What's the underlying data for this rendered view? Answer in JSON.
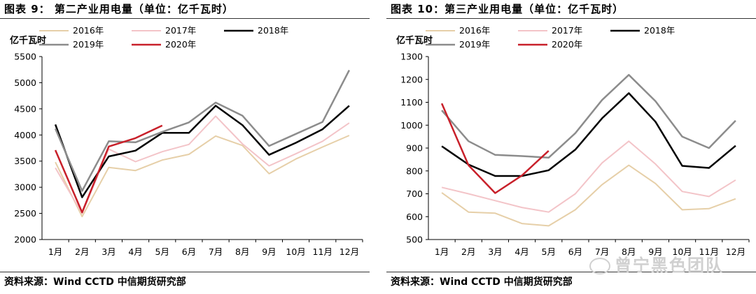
{
  "charts": [
    {
      "figure_title": "图表 9：  第二产业用电量（单位：亿千瓦时）",
      "source": "资料来源：Wind CCTD 中信期货研究部",
      "chart_data": {
        "type": "line",
        "ylabel": "亿千瓦时",
        "ylim": [
          2000,
          5500
        ],
        "yticks": [
          2000,
          2500,
          3000,
          3500,
          4000,
          4500,
          5000,
          5500
        ],
        "categories": [
          "1月",
          "2月",
          "3月",
          "4月",
          "5月",
          "6月",
          "7月",
          "8月",
          "9月",
          "10月",
          "11月",
          "12月"
        ],
        "legend": "top",
        "series": [
          {
            "name": "2016年",
            "color": "#e6cfa8",
            "width": 2,
            "values": [
              3480,
              2440,
              3380,
              3320,
              3520,
              3630,
              3980,
              3800,
              3260,
              3540,
              3770,
              3990
            ]
          },
          {
            "name": "2017年",
            "color": "#f3c4c8",
            "width": 2,
            "values": [
              3370,
              2500,
              3730,
              3490,
              3680,
              3820,
              4360,
              3830,
              3410,
              3640,
              3880,
              4230
            ]
          },
          {
            "name": "2018年",
            "color": "#000000",
            "width": 2.5,
            "values": [
              4200,
              2810,
              3590,
              3700,
              4040,
              4040,
              4560,
              4190,
              3620,
              3850,
              4110,
              4560
            ]
          },
          {
            "name": "2019年",
            "color": "#8c8c8c",
            "width": 2.5,
            "values": [
              4120,
              2930,
              3880,
              3860,
              4060,
              4240,
              4620,
              4370,
              3790,
              4020,
              4250,
              5240
            ]
          },
          {
            "name": "2020年",
            "color": "#c8202a",
            "width": 2.5,
            "values": [
              3710,
              2520,
              3780,
              3940,
              4180,
              null,
              null,
              null,
              null,
              null,
              null,
              null
            ]
          }
        ]
      }
    },
    {
      "figure_title": "图表 10：第三产业用电量（单位：亿千瓦时）",
      "source": "资料来源：Wind CCTD 中信期货研究部",
      "chart_data": {
        "type": "line",
        "ylabel": "亿千瓦时",
        "ylim": [
          500,
          1300
        ],
        "yticks": [
          500,
          600,
          700,
          800,
          900,
          1000,
          1100,
          1200,
          1300
        ],
        "categories": [
          "1月",
          "2月",
          "3月",
          "4月",
          "5月",
          "6月",
          "7月",
          "8月",
          "9月",
          "10月",
          "11月",
          "12月"
        ],
        "legend": "top",
        "series": [
          {
            "name": "2016年",
            "color": "#e6cfa8",
            "width": 2,
            "values": [
              705,
              620,
              615,
              570,
              560,
              630,
              740,
              825,
              745,
              630,
              635,
              678
            ]
          },
          {
            "name": "2017年",
            "color": "#f3c4c8",
            "width": 2,
            "values": [
              728,
              700,
              670,
              640,
              620,
              700,
              835,
              930,
              830,
              710,
              688,
              760
            ]
          },
          {
            "name": "2018年",
            "color": "#000000",
            "width": 2.5,
            "values": [
              908,
              828,
              778,
              778,
              803,
              893,
              1030,
              1140,
              1015,
              822,
              813,
              910
            ]
          },
          {
            "name": "2019年",
            "color": "#8c8c8c",
            "width": 2.5,
            "values": [
              1065,
              930,
              870,
              865,
              858,
              965,
              1110,
              1220,
              1105,
              950,
              900,
              1020
            ]
          },
          {
            "name": "2020年",
            "color": "#c8202a",
            "width": 2.5,
            "values": [
              1095,
              825,
              703,
              780,
              888,
              null,
              null,
              null,
              null,
              null,
              null,
              null
            ]
          }
        ]
      }
    }
  ],
  "watermark": {
    "text": "曾宁黑色团队",
    "icon": "wechat-icon"
  }
}
